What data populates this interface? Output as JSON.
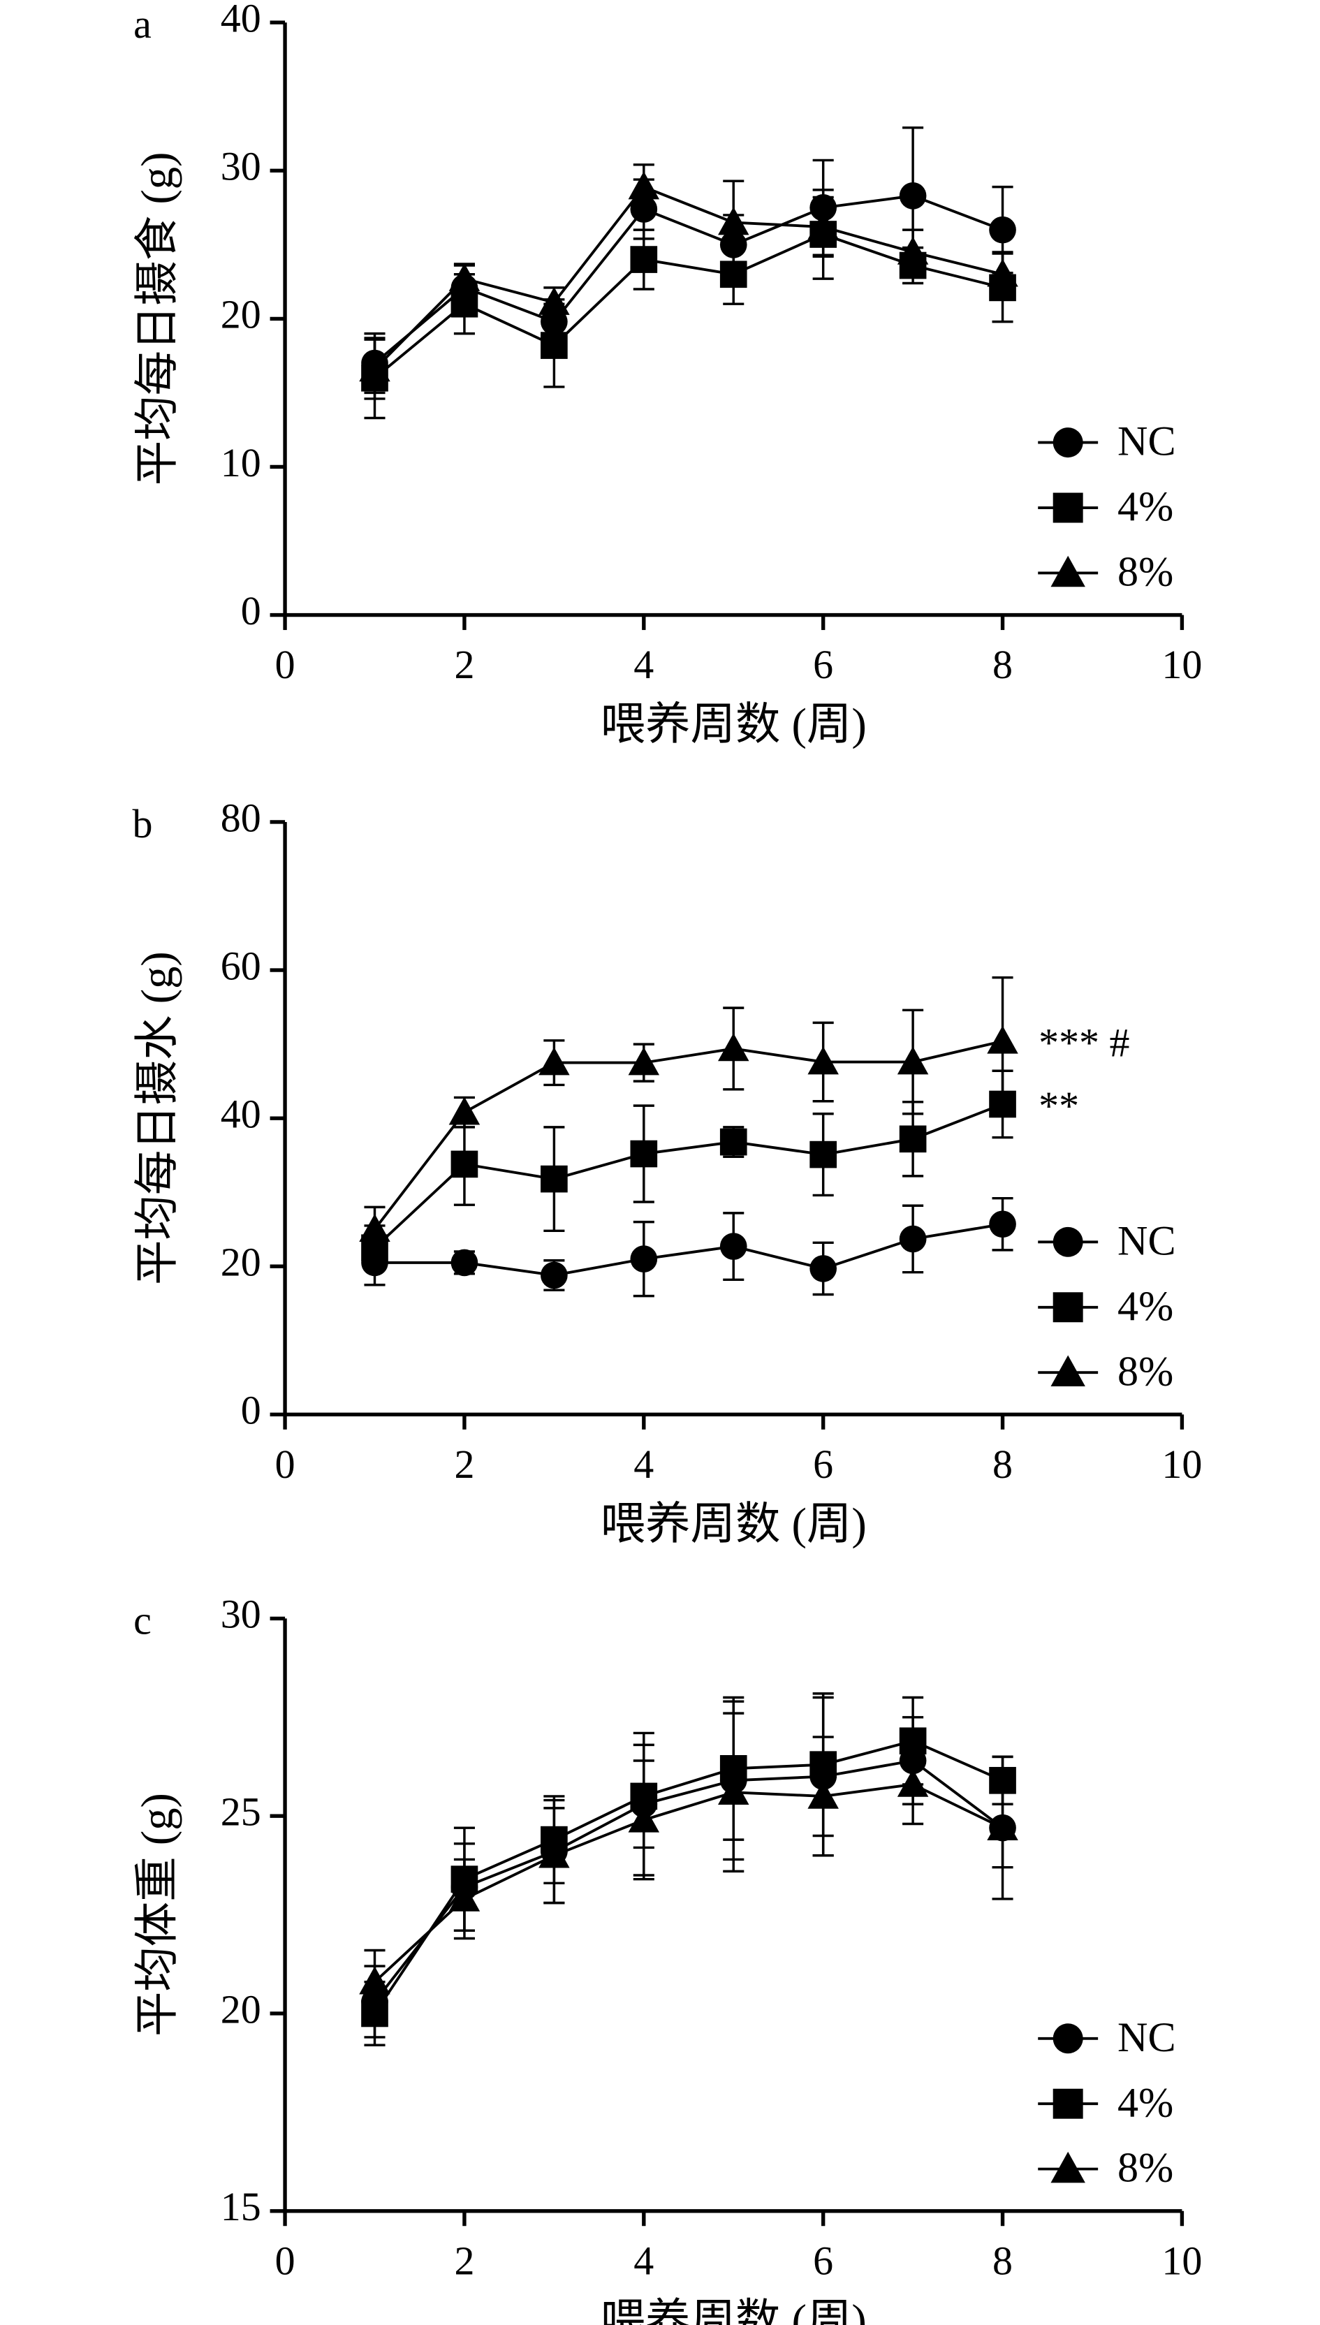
{
  "chart_data": [
    {
      "type": "line",
      "panel_label": "a",
      "ylabel": "平均每日摄食 (g)",
      "xlabel": "喂养周数 (周)",
      "x": [
        1,
        2,
        3,
        4,
        5,
        6,
        7,
        8
      ],
      "xlim": [
        0,
        10
      ],
      "xticks": [
        0,
        2,
        4,
        6,
        8,
        10
      ],
      "ylim": [
        0,
        40
      ],
      "yticks": [
        0,
        10,
        20,
        30,
        40
      ],
      "legend": "lower right",
      "series": [
        {
          "name": "NC",
          "marker": "circle",
          "color": "#000000",
          "values": [
            17.0,
            22.1,
            19.8,
            27.4,
            25.0,
            27.5,
            28.3,
            26.0
          ],
          "errors": [
            2.0,
            1.5,
            1.5,
            2.0,
            2.0,
            3.2,
            4.6,
            2.9
          ]
        },
        {
          "name": "4%",
          "marker": "square",
          "color": "#000000",
          "values": [
            16.0,
            21.0,
            18.2,
            24.0,
            23.0,
            25.7,
            23.6,
            22.1
          ],
          "errors": [
            2.7,
            2.0,
            2.8,
            2.0,
            2.0,
            3.0,
            1.2,
            2.3
          ]
        },
        {
          "name": "8%",
          "marker": "triangle",
          "color": "#000000",
          "values": [
            16.6,
            22.7,
            21.1,
            28.9,
            26.5,
            26.2,
            24.5,
            23.0
          ],
          "errors": [
            2.0,
            1.0,
            1.0,
            1.5,
            2.8,
            2.0,
            1.5,
            1.5
          ]
        }
      ]
    },
    {
      "type": "line",
      "panel_label": "b",
      "ylabel": "平均每日摄水 (g)",
      "xlabel": "喂养周数 (周)",
      "x": [
        1,
        2,
        3,
        4,
        5,
        6,
        7,
        8
      ],
      "xlim": [
        0,
        10
      ],
      "xticks": [
        0,
        2,
        4,
        6,
        8,
        10
      ],
      "ylim": [
        0,
        80
      ],
      "yticks": [
        0,
        20,
        40,
        60,
        80
      ],
      "legend": "lower right",
      "series": [
        {
          "name": "NC",
          "marker": "circle",
          "color": "#000000",
          "values": [
            20.5,
            20.5,
            18.8,
            21.0,
            22.7,
            19.7,
            23.7,
            25.7
          ],
          "errors": [
            3.0,
            1.5,
            2.0,
            5.0,
            4.5,
            3.5,
            4.5,
            3.5
          ]
        },
        {
          "name": "4%",
          "marker": "square",
          "color": "#000000",
          "values": [
            22.5,
            33.8,
            31.8,
            35.2,
            36.8,
            35.1,
            37.2,
            41.9
          ],
          "errors": [
            3.0,
            5.5,
            7.0,
            6.5,
            2.0,
            5.5,
            5.0,
            4.5
          ],
          "annotation": "**"
        },
        {
          "name": "8%",
          "marker": "triangle",
          "color": "#000000",
          "values": [
            25.0,
            40.8,
            47.5,
            47.5,
            49.4,
            47.6,
            47.6,
            50.4
          ],
          "errors": [
            3.0,
            2.0,
            3.0,
            2.5,
            5.5,
            5.3,
            7.0,
            8.6
          ],
          "annotation": "*** #"
        }
      ]
    },
    {
      "type": "line",
      "panel_label": "c",
      "ylabel": "平均体重 (g)",
      "xlabel": "喂养周数 (周)",
      "x": [
        1,
        2,
        3,
        4,
        5,
        6,
        7,
        8
      ],
      "xlim": [
        0,
        10
      ],
      "xticks": [
        0,
        2,
        4,
        6,
        8,
        10
      ],
      "ylim": [
        15,
        30
      ],
      "yticks": [
        15,
        20,
        25,
        30
      ],
      "legend": "lower right",
      "series": [
        {
          "name": "NC",
          "marker": "circle",
          "color": "#000000",
          "values": [
            20.3,
            23.2,
            24.1,
            25.3,
            25.9,
            26.0,
            26.4,
            24.7
          ],
          "errors": [
            0.9,
            1.1,
            1.3,
            1.8,
            2.0,
            2.0,
            1.1,
            1.8
          ]
        },
        {
          "name": "4%",
          "marker": "square",
          "color": "#000000",
          "values": [
            20.0,
            23.4,
            24.4,
            25.5,
            26.2,
            26.3,
            26.9,
            25.9
          ],
          "errors": [
            0.8,
            1.3,
            1.1,
            1.3,
            1.8,
            1.8,
            1.1,
            0.6
          ]
        },
        {
          "name": "8%",
          "marker": "triangle",
          "color": "#000000",
          "values": [
            20.8,
            22.9,
            24.0,
            24.9,
            25.6,
            25.5,
            25.8,
            24.7
          ],
          "errors": [
            0.8,
            1.0,
            1.2,
            1.5,
            2.0,
            1.5,
            1.0,
            1.0
          ]
        }
      ]
    }
  ]
}
